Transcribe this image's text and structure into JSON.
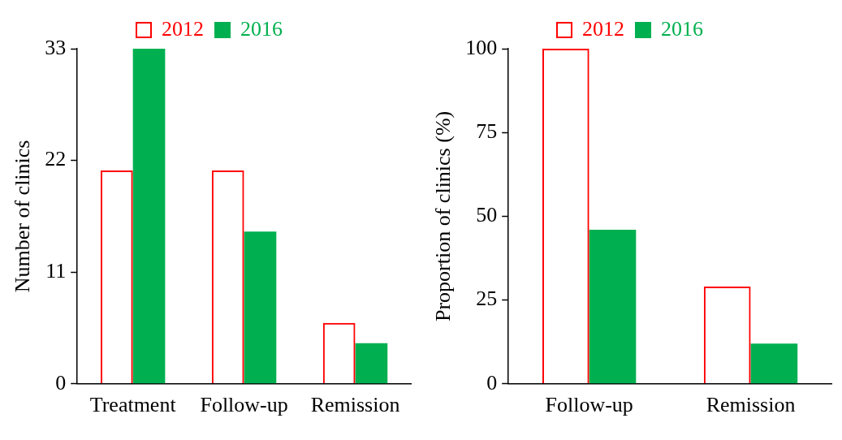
{
  "chart_data": [
    {
      "type": "bar",
      "categories": [
        "Treatment",
        "Follow-up",
        "Remission"
      ],
      "ylabel": "Number of clinics",
      "ylim": [
        0,
        33
      ],
      "yticks": [
        0,
        11,
        22,
        33
      ],
      "grid": false,
      "legend": "top",
      "series": [
        {
          "name": "2012",
          "color": "#ff0000",
          "values": [
            21,
            21,
            6
          ]
        },
        {
          "name": "2016",
          "color": "#00b050",
          "values": [
            33,
            15,
            4
          ]
        }
      ]
    },
    {
      "type": "bar",
      "categories": [
        "Follow-up",
        "Remission"
      ],
      "ylabel": "Proportion of clinics (%)",
      "ylim": [
        0,
        100
      ],
      "yticks": [
        0,
        25,
        50,
        75,
        100
      ],
      "grid": false,
      "legend": "top",
      "series": [
        {
          "name": "2012",
          "color": "#ff0000",
          "values": [
            100,
            29
          ]
        },
        {
          "name": "2016",
          "color": "#00b050",
          "values": [
            46,
            12
          ]
        }
      ]
    }
  ]
}
